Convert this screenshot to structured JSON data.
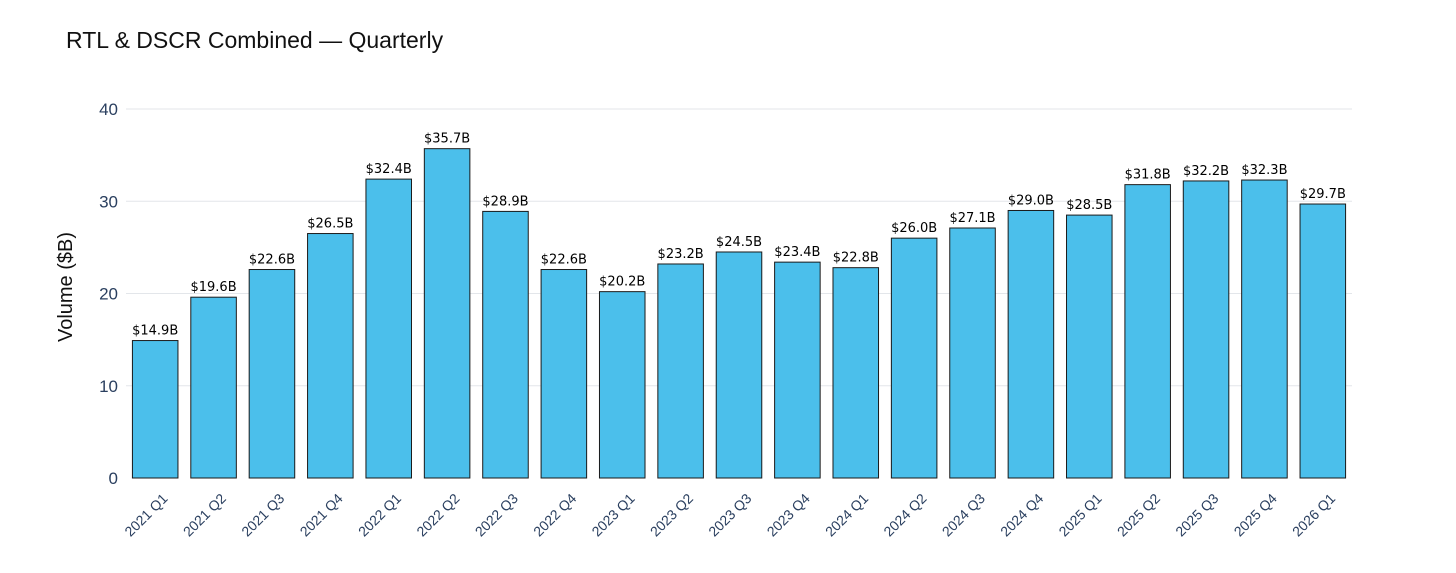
{
  "chart_data": {
    "type": "bar",
    "title": "RTL & DSCR Combined — Quarterly",
    "xlabel": "",
    "ylabel": "Volume ($B)",
    "ylim": [
      0,
      40
    ],
    "yticks": [
      0,
      10,
      20,
      30,
      40
    ],
    "grid": true,
    "bar_color": "#4bbfeb",
    "bar_edge_color": "#1a1a1a",
    "categories": [
      "2021 Q1",
      "2021 Q2",
      "2021 Q3",
      "2021 Q4",
      "2022 Q1",
      "2022 Q2",
      "2022 Q3",
      "2022 Q4",
      "2023 Q1",
      "2023 Q2",
      "2023 Q3",
      "2023 Q4",
      "2024 Q1",
      "2024 Q2",
      "2024 Q3",
      "2024 Q4",
      "2025 Q1",
      "2025 Q2",
      "2025 Q3",
      "2025 Q4",
      "2026 Q1"
    ],
    "values": [
      14.9,
      19.6,
      22.6,
      26.5,
      32.4,
      35.7,
      28.9,
      22.6,
      20.2,
      23.2,
      24.5,
      23.4,
      22.8,
      26.0,
      27.1,
      29.0,
      28.5,
      31.8,
      32.2,
      32.3,
      29.7
    ],
    "data_labels": [
      "$14.9B",
      "$19.6B",
      "$22.6B",
      "$26.5B",
      "$32.4B",
      "$35.7B",
      "$28.9B",
      "$22.6B",
      "$20.2B",
      "$23.2B",
      "$24.5B",
      "$23.4B",
      "$22.8B",
      "$26.0B",
      "$27.1B",
      "$29.0B",
      "$28.5B",
      "$31.8B",
      "$32.2B",
      "$32.3B",
      "$29.7B"
    ]
  }
}
